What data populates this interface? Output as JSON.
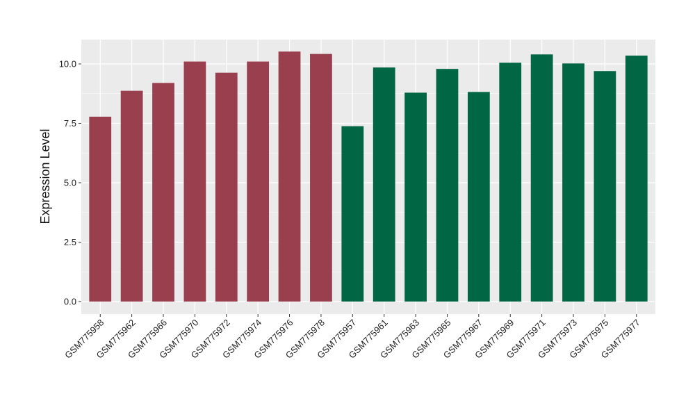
{
  "chart_data": {
    "type": "bar",
    "title": "",
    "xlabel": "",
    "ylabel": "Expression Level",
    "ylim": [
      0,
      11
    ],
    "yticks": [
      0.0,
      2.5,
      5.0,
      7.5,
      10.0
    ],
    "ytick_labels": [
      "0.0",
      "2.5",
      "5.0",
      "7.5",
      "10.0"
    ],
    "grid": true,
    "legend": "none",
    "colors": {
      "group1": "#993F4E",
      "group2": "#006644",
      "panel": "#EBEBEB",
      "gridline": "#FFFFFF"
    },
    "categories": [
      "GSM775958",
      "GSM775962",
      "GSM775966",
      "GSM775970",
      "GSM775972",
      "GSM775974",
      "GSM775976",
      "GSM775978",
      "GSM775957",
      "GSM775961",
      "GSM775963",
      "GSM775965",
      "GSM775967",
      "GSM775969",
      "GSM775971",
      "GSM775973",
      "GSM775975",
      "GSM775977"
    ],
    "values": [
      7.78,
      8.87,
      9.2,
      10.1,
      9.63,
      10.1,
      10.52,
      10.42,
      7.38,
      9.85,
      8.79,
      9.79,
      8.82,
      10.05,
      10.4,
      10.02,
      9.7,
      10.35
    ],
    "bar_colors": [
      "#993F4E",
      "#993F4E",
      "#993F4E",
      "#993F4E",
      "#993F4E",
      "#993F4E",
      "#993F4E",
      "#993F4E",
      "#006644",
      "#006644",
      "#006644",
      "#006644",
      "#006644",
      "#006644",
      "#006644",
      "#006644",
      "#006644",
      "#006644"
    ]
  }
}
